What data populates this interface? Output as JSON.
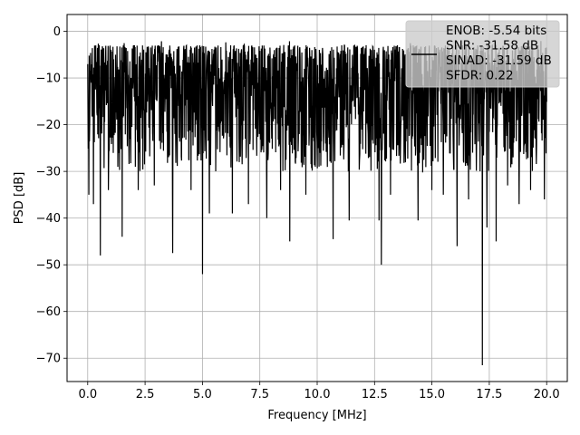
{
  "chart_data": {
    "type": "line",
    "title": "",
    "xlabel": "Frequency [MHz]",
    "ylabel": "PSD [dB]",
    "xlim": [
      -0.9,
      20.9
    ],
    "ylim": [
      -75,
      3.6
    ],
    "xticks": [
      0.0,
      2.5,
      5.0,
      7.5,
      10.0,
      12.5,
      15.0,
      17.5,
      20.0
    ],
    "xtick_labels": [
      "0.0",
      "2.5",
      "5.0",
      "7.5",
      "10.0",
      "12.5",
      "15.0",
      "17.5",
      "20.0"
    ],
    "yticks": [
      0,
      -10,
      -20,
      -30,
      -40,
      -50,
      -60,
      -70
    ],
    "ytick_labels": [
      "0",
      "−10",
      "−20",
      "−30",
      "−40",
      "−50",
      "−60",
      "−70"
    ],
    "grid": true,
    "legend_position": "upper-right",
    "series_color": "#000000",
    "series": [
      {
        "name": "",
        "description": "dense noisy power spectral density, mostly between -3 and -30 dB",
        "band_x": [
          0,
          20
        ],
        "upper_envelope_db": -3,
        "lower_envelope_db": -30,
        "deep_dips": [
          {
            "x": 0.05,
            "y": -35
          },
          {
            "x": 0.25,
            "y": -37
          },
          {
            "x": 0.55,
            "y": -48
          },
          {
            "x": 0.9,
            "y": -34
          },
          {
            "x": 1.5,
            "y": -44
          },
          {
            "x": 2.2,
            "y": -34
          },
          {
            "x": 2.9,
            "y": -33
          },
          {
            "x": 3.7,
            "y": -47.5
          },
          {
            "x": 4.5,
            "y": -34
          },
          {
            "x": 5.0,
            "y": -52
          },
          {
            "x": 5.3,
            "y": -39
          },
          {
            "x": 6.3,
            "y": -39
          },
          {
            "x": 7.0,
            "y": -37
          },
          {
            "x": 7.8,
            "y": -40
          },
          {
            "x": 8.4,
            "y": -34
          },
          {
            "x": 8.8,
            "y": -45
          },
          {
            "x": 9.5,
            "y": -35
          },
          {
            "x": 10.7,
            "y": -44.5
          },
          {
            "x": 11.4,
            "y": -40.5
          },
          {
            "x": 12.7,
            "y": -40.5
          },
          {
            "x": 12.8,
            "y": -50
          },
          {
            "x": 13.2,
            "y": -35
          },
          {
            "x": 14.4,
            "y": -40.5
          },
          {
            "x": 15.0,
            "y": -34
          },
          {
            "x": 15.5,
            "y": -35
          },
          {
            "x": 16.1,
            "y": -46
          },
          {
            "x": 16.6,
            "y": -36
          },
          {
            "x": 17.2,
            "y": -71.5
          },
          {
            "x": 17.4,
            "y": -42
          },
          {
            "x": 17.8,
            "y": -45
          },
          {
            "x": 18.3,
            "y": -33
          },
          {
            "x": 18.8,
            "y": -37
          },
          {
            "x": 19.3,
            "y": -34
          },
          {
            "x": 19.9,
            "y": -36
          }
        ]
      }
    ],
    "legend": {
      "lines": [
        "ENOB: -5.54 bits",
        "SNR: -31.58 dB",
        "SINAD: -31.59 dB",
        "SFDR: 0.22"
      ]
    }
  }
}
